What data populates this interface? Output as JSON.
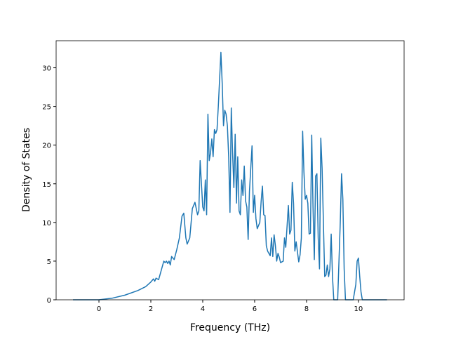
{
  "chart_data": {
    "type": "line",
    "x_label": "Frequency (THz)",
    "y_label": "Density of States",
    "x": [
      -1,
      0,
      0.5,
      1,
      1.5,
      1.8,
      2.0,
      2.1,
      2.15,
      2.2,
      2.3,
      2.4,
      2.5,
      2.55,
      2.6,
      2.65,
      2.7,
      2.75,
      2.8,
      2.9,
      3.0,
      3.1,
      3.2,
      3.27,
      3.35,
      3.4,
      3.5,
      3.6,
      3.7,
      3.8,
      3.85,
      3.9,
      4.0,
      4.05,
      4.1,
      4.15,
      4.2,
      4.25,
      4.3,
      4.35,
      4.4,
      4.45,
      4.5,
      4.55,
      4.6,
      4.7,
      4.75,
      4.8,
      4.85,
      4.9,
      4.95,
      5.0,
      5.05,
      5.1,
      5.15,
      5.2,
      5.25,
      5.3,
      5.35,
      5.4,
      5.45,
      5.5,
      5.55,
      5.6,
      5.65,
      5.7,
      5.75,
      5.8,
      5.9,
      5.95,
      6.0,
      6.05,
      6.1,
      6.2,
      6.25,
      6.3,
      6.35,
      6.4,
      6.45,
      6.5,
      6.6,
      6.65,
      6.7,
      6.75,
      6.8,
      6.85,
      6.9,
      6.95,
      7.0,
      7.1,
      7.15,
      7.2,
      7.3,
      7.35,
      7.4,
      7.45,
      7.5,
      7.55,
      7.6,
      7.7,
      7.75,
      7.8,
      7.85,
      7.9,
      7.95,
      8.0,
      8.05,
      8.1,
      8.15,
      8.2,
      8.25,
      8.3,
      8.35,
      8.4,
      8.45,
      8.5,
      8.55,
      8.6,
      8.7,
      8.75,
      8.8,
      8.85,
      8.9,
      8.95,
      9.0,
      9.05,
      9.2,
      9.3,
      9.35,
      9.4,
      9.45,
      9.5,
      9.8,
      9.9,
      9.95,
      10.0,
      10.05,
      10.1,
      10.15,
      11.1
    ],
    "series": [
      {
        "color": "#1f77b4",
        "values": [
          0,
          0,
          0.2,
          0.6,
          1.2,
          1.7,
          2.3,
          2.7,
          2.4,
          2.8,
          2.6,
          3.8,
          5.0,
          4.8,
          5.0,
          4.7,
          5.0,
          4.5,
          5.6,
          5.2,
          6.5,
          8.0,
          10.8,
          11.2,
          8.0,
          7.2,
          8.0,
          11.8,
          12.6,
          11.0,
          11.5,
          18.0,
          12.0,
          11.5,
          15.5,
          11.0,
          24.0,
          18.0,
          19.0,
          20.8,
          18.5,
          22.0,
          21.5,
          22.0,
          25.0,
          32.0,
          28.0,
          22.5,
          24.5,
          24.0,
          22.5,
          18.5,
          11.3,
          24.8,
          19.0,
          14.5,
          21.4,
          12.5,
          18.5,
          11.5,
          11.0,
          15.5,
          13.5,
          17.3,
          12.8,
          12.0,
          7.8,
          14.0,
          19.9,
          11.3,
          13.5,
          10.5,
          9.2,
          10.0,
          12.7,
          14.7,
          11.0,
          10.9,
          7.0,
          6.3,
          5.7,
          8.0,
          5.6,
          8.4,
          7.0,
          5.0,
          6.0,
          5.5,
          4.8,
          5.0,
          8.0,
          6.8,
          12.2,
          8.5,
          9.0,
          15.2,
          12.5,
          6.3,
          7.5,
          4.9,
          5.8,
          8.0,
          21.8,
          16.5,
          13.0,
          13.5,
          12.5,
          8.5,
          8.6,
          21.3,
          12.0,
          5.2,
          16.0,
          16.3,
          8.0,
          4.0,
          20.9,
          17.0,
          3.0,
          3.2,
          4.5,
          3.0,
          4.0,
          8.5,
          3.0,
          0,
          0,
          10.0,
          16.3,
          13.0,
          4.0,
          0,
          0,
          2.0,
          5.0,
          5.4,
          3.0,
          1.0,
          0,
          0
        ]
      }
    ],
    "xlim": [
      -1.65,
      11.76
    ],
    "ylim": [
      0,
      33.5
    ],
    "xticks": [
      0,
      2,
      4,
      6,
      8,
      10
    ],
    "yticks": [
      0,
      5,
      10,
      15,
      20,
      25,
      30
    ]
  }
}
